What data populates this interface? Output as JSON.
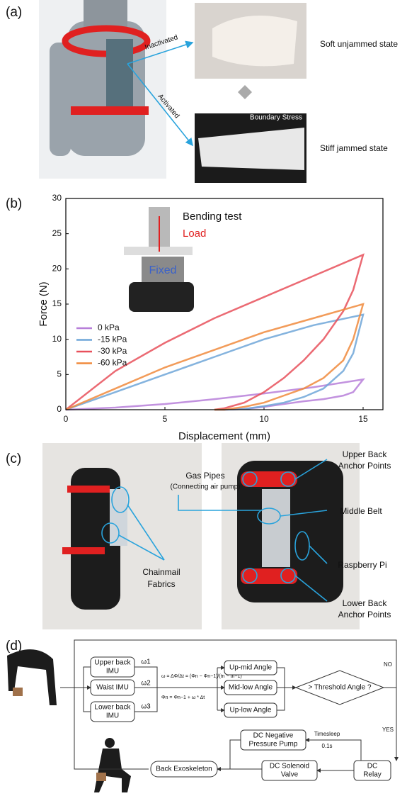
{
  "panel_a": {
    "label": "(a)",
    "arrow_top": "Inactivated",
    "arrow_bottom": "Activated",
    "photo_note": "Boundary Stress",
    "state_top": "Soft unjammed state",
    "state_bottom": "Stiff jammed state"
  },
  "chart_data": {
    "type": "line",
    "panel_label": "(b)",
    "x_label": "Displacement (mm)",
    "y_label": "Force (N)",
    "inset": {
      "title": "Bending test",
      "load": "Load",
      "fixed": "Fixed"
    },
    "x": [
      0,
      2.5,
      5,
      7.5,
      10,
      12.5,
      15,
      14.5,
      14,
      13,
      12,
      11,
      10,
      9,
      8,
      7.5
    ],
    "xlim": [
      0,
      16
    ],
    "xticks": [
      0,
      5,
      10,
      15
    ],
    "ylim": [
      0,
      30
    ],
    "yticks": [
      0,
      5,
      10,
      15,
      20,
      25,
      30
    ],
    "legend": "left",
    "series": [
      {
        "name": "0 kPa",
        "color": "#b77fd9",
        "values": [
          0,
          0.3,
          0.8,
          1.5,
          2.3,
          3.2,
          4.3,
          2.5,
          2,
          1.5,
          1.2,
          0.8,
          0.4,
          0.1,
          0,
          0
        ]
      },
      {
        "name": "-15 kPa",
        "color": "#6ea6d8",
        "values": [
          0,
          2.5,
          5,
          7.5,
          10,
          12,
          13.5,
          8,
          5.5,
          3,
          1.8,
          1,
          0.5,
          0.1,
          0,
          0
        ]
      },
      {
        "name": "-30 kPa",
        "color": "#e8505b",
        "values": [
          0,
          5.5,
          9.5,
          13,
          16,
          19,
          22,
          17,
          14,
          10,
          7,
          4.5,
          2.5,
          1,
          0.2,
          0
        ]
      },
      {
        "name": "-60 kPa",
        "color": "#f08a3c",
        "values": [
          0,
          3,
          6,
          8.5,
          11,
          13,
          15,
          10,
          7,
          4.5,
          3,
          2,
          1,
          0.4,
          0,
          0
        ]
      }
    ]
  },
  "panel_c": {
    "label": "(c)",
    "gas_pipes": "Gas Pipes",
    "gas_pipes_note": "(Connecting air pump)",
    "chainmail": [
      "Chainmail",
      "Fabrics"
    ],
    "upper_anchor": [
      "Upper Back",
      "Anchor Points"
    ],
    "middle_belt": "Middle Belt",
    "raspberry": "Raspberry Pi",
    "lower_anchor": [
      "Lower Back",
      "Anchor Points"
    ]
  },
  "panel_d": {
    "label": "(d)",
    "imus": [
      [
        "Upper back",
        "IMU"
      ],
      [
        "Waist IMU"
      ],
      [
        "Lower back",
        "IMU"
      ]
    ],
    "omegas": [
      "ω1",
      "ω2",
      "ω3"
    ],
    "equations": [
      "ω = ΔΦ/Δt = (Φn − Φn−1)/(tn − tn−1)",
      "Φn = Φn−1 + ω * Δt"
    ],
    "angles": [
      "Up-mid Angle",
      "Mid-low Angle",
      "Up-low Angle"
    ],
    "decision": "> Threshold Angle ?",
    "no": "NO",
    "yes": "YES",
    "relay": [
      "DC",
      "Relay"
    ],
    "valve": [
      "DC Solenoid",
      "Valve"
    ],
    "pump": [
      "DC Negative",
      "Pressure Pump"
    ],
    "timesleep": "Timesleep",
    "delay": "0.1s",
    "exo": "Back Exoskeleton"
  }
}
